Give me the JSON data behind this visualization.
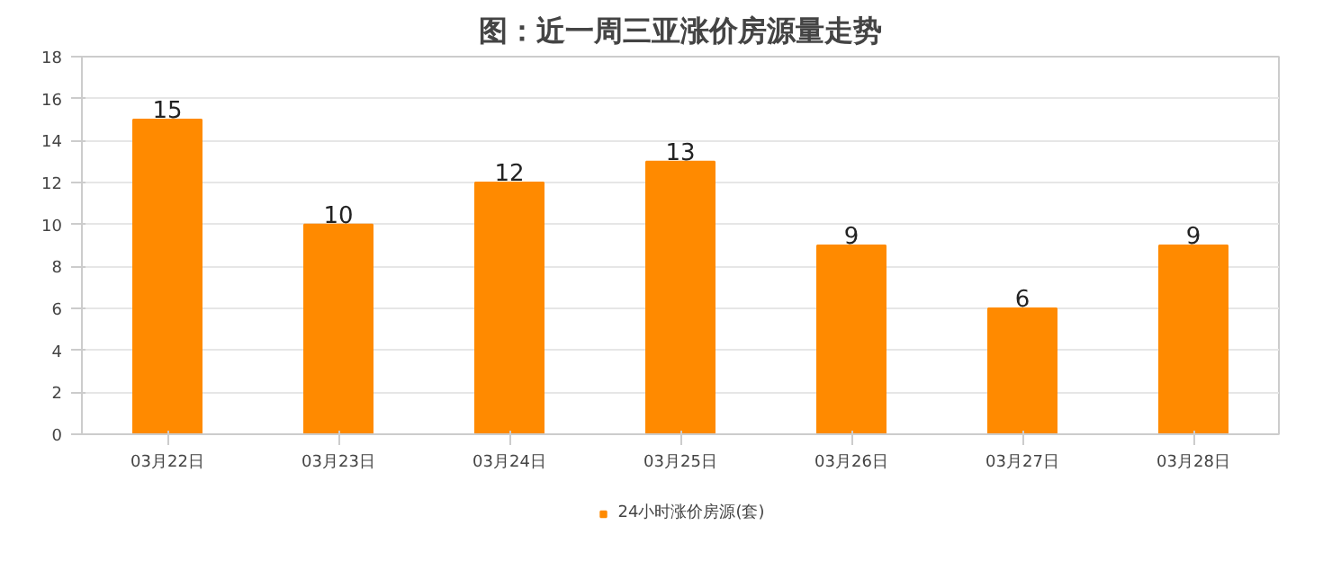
{
  "chart_data": {
    "type": "bar",
    "title": "图：近一周三亚涨价房源量走势",
    "categories": [
      "03月22日",
      "03月23日",
      "03月24日",
      "03月25日",
      "03月26日",
      "03月27日",
      "03月28日"
    ],
    "series": [
      {
        "name": "24小时涨价房源(套)",
        "color": "#ff8a00",
        "values": [
          15,
          10,
          12,
          13,
          9,
          6,
          9
        ]
      }
    ],
    "ylim": [
      0,
      18
    ],
    "yticks": [
      0,
      2,
      4,
      6,
      8,
      10,
      12,
      14,
      16,
      18
    ],
    "grid": "y",
    "legend": "bottom",
    "data_labels": true
  }
}
